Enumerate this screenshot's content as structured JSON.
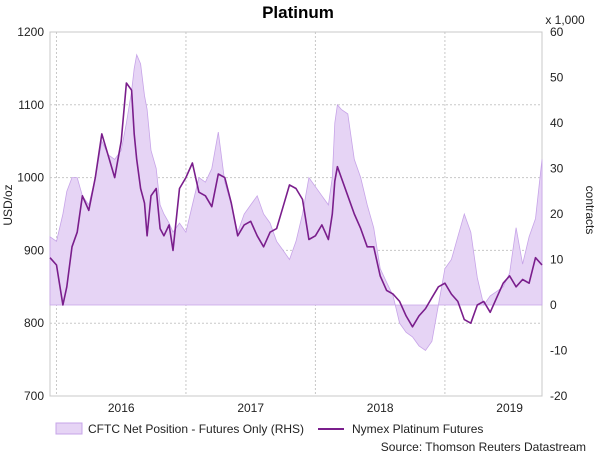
{
  "chart_data": {
    "type": "line",
    "title": "Platinum",
    "ylabel": "USD/oz",
    "y2label": "contracts",
    "y2unit": "x 1,000",
    "ylim": [
      700,
      1200
    ],
    "y2lim": [
      -20,
      60
    ],
    "yticks": [
      700,
      800,
      900,
      1000,
      1100,
      1200
    ],
    "y2ticks": [
      -20,
      -10,
      0,
      10,
      20,
      30,
      40,
      50,
      60
    ],
    "xlim": [
      2015.45,
      2019.25
    ],
    "xticks": [
      {
        "label": "2016",
        "x": 2016.0
      },
      {
        "label": "2017",
        "x": 2017.0
      },
      {
        "label": "2018",
        "x": 2018.0
      },
      {
        "label": "2019",
        "x": 2019.0
      }
    ],
    "xgrid": [
      2015.5,
      2016.5,
      2017.5,
      2018.5,
      2019.5
    ],
    "grid": true,
    "legend_position": "bottom",
    "source": "Source: Thomson Reuters Datastream",
    "series": [
      {
        "name": "CFTC Net Position - Futures Only (RHS)",
        "type": "area",
        "axis": "right",
        "color": "#e6d4f5",
        "edge": "#c7a4e8",
        "x": [
          2015.45,
          2015.5,
          2015.55,
          2015.58,
          2015.62,
          2015.66,
          2015.7,
          2015.75,
          2015.8,
          2015.85,
          2015.9,
          2015.95,
          2016.0,
          2016.04,
          2016.08,
          2016.1,
          2016.12,
          2016.15,
          2016.18,
          2016.2,
          2016.23,
          2016.27,
          2016.3,
          2016.33,
          2016.37,
          2016.4,
          2016.45,
          2016.5,
          2016.55,
          2016.6,
          2016.65,
          2016.7,
          2016.75,
          2016.8,
          2016.85,
          2016.9,
          2016.95,
          2017.0,
          2017.05,
          2017.1,
          2017.15,
          2017.2,
          2017.25,
          2017.3,
          2017.35,
          2017.4,
          2017.45,
          2017.5,
          2017.55,
          2017.6,
          2017.63,
          2017.65,
          2017.67,
          2017.7,
          2017.75,
          2017.8,
          2017.85,
          2017.9,
          2017.95,
          2018.0,
          2018.05,
          2018.1,
          2018.15,
          2018.2,
          2018.25,
          2018.3,
          2018.35,
          2018.4,
          2018.45,
          2018.5,
          2018.55,
          2018.6,
          2018.65,
          2018.7,
          2018.75,
          2018.8,
          2018.85,
          2018.9,
          2018.95,
          2019.0,
          2019.05,
          2019.1,
          2019.15,
          2019.2,
          2019.25
        ],
        "values": [
          15,
          14,
          20,
          25,
          28,
          28,
          24,
          22,
          28,
          36,
          33,
          32,
          34,
          40,
          47,
          52,
          55,
          53,
          46,
          43,
          34,
          30,
          22,
          20,
          18,
          16,
          18,
          16,
          22,
          28,
          27,
          30,
          38,
          27,
          22,
          16,
          20,
          22,
          24,
          20,
          18,
          14,
          12,
          10,
          14,
          20,
          28,
          26,
          24,
          22,
          28,
          40,
          44,
          43,
          42,
          32,
          28,
          22,
          17,
          8,
          5,
          2,
          -4,
          -6,
          -7,
          -9,
          -10,
          -8,
          0,
          8,
          10,
          15,
          20,
          16,
          6,
          0,
          2,
          3,
          4,
          7,
          17,
          9,
          15,
          19,
          32
        ]
      },
      {
        "name": "Nymex Platinum Futures",
        "type": "line",
        "axis": "left",
        "color": "#7a1e8c",
        "x": [
          2015.45,
          2015.5,
          2015.55,
          2015.58,
          2015.62,
          2015.66,
          2015.7,
          2015.75,
          2015.8,
          2015.85,
          2015.9,
          2015.95,
          2016.0,
          2016.04,
          2016.08,
          2016.1,
          2016.12,
          2016.15,
          2016.18,
          2016.2,
          2016.23,
          2016.27,
          2016.3,
          2016.33,
          2016.37,
          2016.4,
          2016.45,
          2016.5,
          2016.55,
          2016.6,
          2016.65,
          2016.7,
          2016.75,
          2016.8,
          2016.85,
          2016.9,
          2016.95,
          2017.0,
          2017.05,
          2017.1,
          2017.15,
          2017.2,
          2017.25,
          2017.3,
          2017.35,
          2017.4,
          2017.45,
          2017.5,
          2017.55,
          2017.6,
          2017.63,
          2017.65,
          2017.67,
          2017.7,
          2017.75,
          2017.8,
          2017.85,
          2017.9,
          2017.95,
          2018.0,
          2018.05,
          2018.1,
          2018.15,
          2018.2,
          2018.25,
          2018.3,
          2018.35,
          2018.4,
          2018.45,
          2018.5,
          2018.55,
          2018.6,
          2018.65,
          2018.7,
          2018.75,
          2018.8,
          2018.85,
          2018.9,
          2018.95,
          2019.0,
          2019.05,
          2019.1,
          2019.15,
          2019.2,
          2019.25
        ],
        "values": [
          890,
          880,
          825,
          850,
          905,
          925,
          975,
          955,
          1000,
          1060,
          1030,
          1000,
          1050,
          1130,
          1120,
          1060,
          1025,
          985,
          965,
          920,
          975,
          985,
          930,
          920,
          935,
          900,
          985,
          1000,
          1020,
          980,
          975,
          960,
          1005,
          1000,
          965,
          920,
          935,
          940,
          920,
          905,
          925,
          930,
          960,
          990,
          985,
          970,
          915,
          920,
          935,
          915,
          950,
          995,
          1015,
          1000,
          975,
          950,
          930,
          905,
          905,
          865,
          845,
          840,
          830,
          810,
          795,
          810,
          820,
          835,
          850,
          855,
          840,
          830,
          805,
          800,
          825,
          830,
          815,
          835,
          855,
          865,
          850,
          860,
          855,
          890,
          880
        ]
      }
    ]
  }
}
